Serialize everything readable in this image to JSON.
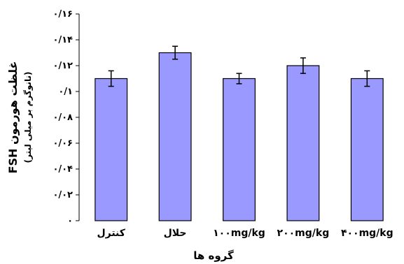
{
  "chart_data": {
    "type": "bar",
    "categories": [
      "کنترل",
      "حلال",
      "۱۰۰mg/kg",
      "۲۰۰mg/kg",
      "۴۰۰mg/kg"
    ],
    "values": [
      0.11,
      0.13,
      0.11,
      0.12,
      0.11
    ],
    "errors": [
      0.006,
      0.005,
      0.004,
      0.006,
      0.006
    ],
    "ylim": [
      0,
      0.16
    ],
    "yticks": [
      0,
      0.02,
      0.04,
      0.06,
      0.08,
      0.1,
      0.12,
      0.14,
      0.16
    ],
    "ytick_labels": [
      "۰",
      "۰/۰۲",
      "۰/۰۴",
      "۰/۰۶",
      "۰/۰۸",
      "۰/۱",
      "۰/۱۲",
      "۰/۱۴",
      "۰/۱۶"
    ],
    "xlabel": "گروه ها",
    "ylabel": "غلظت هورمون FSH",
    "ylabel_sub": "(نانوگرم بر میلی لیتر)",
    "bar_color": "#9999ff",
    "grid": false,
    "title": ""
  }
}
